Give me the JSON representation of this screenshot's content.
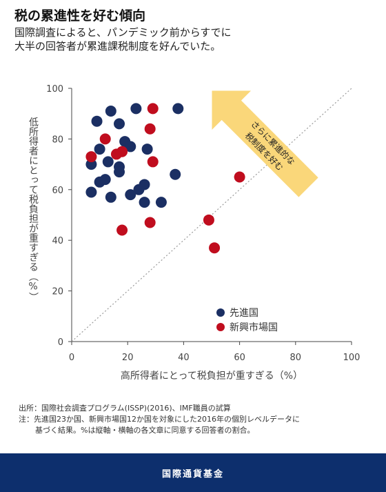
{
  "header": {
    "title": "税の累進性を好む傾向",
    "subtitle_line1": "国際調査によると、パンデミック前からすでに",
    "subtitle_line2": "大半の回答者が累進課税制度を好んでいた。"
  },
  "chart_data": {
    "type": "scatter",
    "xlabel": "高所得者にとって税負担が重すぎる（%）",
    "ylabel": "低所得者にとって税負担が重すぎる（%）",
    "xlim": [
      0,
      100
    ],
    "ylim": [
      0,
      100
    ],
    "xticks": [
      0,
      20,
      40,
      60,
      80,
      100
    ],
    "yticks": [
      0,
      20,
      40,
      60,
      80,
      100
    ],
    "diagonal": true,
    "annotation": {
      "line1": "さらに累進的な",
      "line2": "税制度を好む"
    },
    "legend_position": "bottom-right",
    "series": [
      {
        "name": "先進国",
        "color": "#1b2f63",
        "points": [
          [
            14,
            91
          ],
          [
            23,
            92
          ],
          [
            38,
            92
          ],
          [
            9,
            87
          ],
          [
            17,
            86
          ],
          [
            19,
            79
          ],
          [
            21,
            77
          ],
          [
            10,
            76
          ],
          [
            27,
            76
          ],
          [
            13,
            71
          ],
          [
            7,
            70
          ],
          [
            17,
            69
          ],
          [
            17,
            67
          ],
          [
            37,
            66
          ],
          [
            12,
            64
          ],
          [
            10,
            63
          ],
          [
            26,
            62
          ],
          [
            24,
            60
          ],
          [
            7,
            59
          ],
          [
            21,
            58
          ],
          [
            14,
            57
          ],
          [
            26,
            55
          ],
          [
            32,
            55
          ]
        ]
      },
      {
        "name": "新興市場国",
        "color": "#c00d1e",
        "points": [
          [
            29,
            92
          ],
          [
            28,
            84
          ],
          [
            12,
            80
          ],
          [
            18,
            75
          ],
          [
            16,
            74
          ],
          [
            7,
            73
          ],
          [
            29,
            71
          ],
          [
            60,
            65
          ],
          [
            49,
            48
          ],
          [
            28,
            47
          ],
          [
            18,
            44
          ],
          [
            51,
            37
          ]
        ]
      }
    ]
  },
  "notes": {
    "source": "出所：国際社会調査プログラム(ISSP)(2016)、IMF職員の試算",
    "note_line1": "注：先進国23か国、新興市場国12か国を対象にした2016年の個別レベルデータに",
    "note_line2": "基づく結果。%は縦軸・横軸の各文章に同意する回答者の割合。"
  },
  "footer": {
    "label": "国際通貨基金"
  }
}
